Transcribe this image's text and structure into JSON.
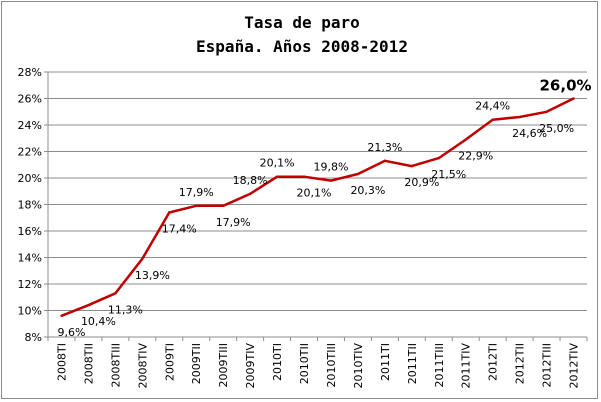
{
  "chart_data": {
    "type": "line",
    "title": "Tasa de paro",
    "subtitle": "España. Años 2008-2012",
    "categories": [
      "2008TI",
      "2008TII",
      "2008TIII",
      "2008TIV",
      "2009TI",
      "2009TII",
      "2009TIII",
      "2009TIV",
      "2010TI",
      "2010TII",
      "2010TIII",
      "2010TIV",
      "2011TI",
      "2011TII",
      "2011TIII",
      "2011TIV",
      "2012TI",
      "2012TII",
      "2012TIII",
      "2012TIV"
    ],
    "series": [
      {
        "values": [
          9.6,
          10.4,
          11.3,
          13.9,
          17.4,
          17.9,
          17.9,
          18.8,
          20.1,
          20.1,
          19.8,
          20.3,
          21.3,
          20.9,
          21.5,
          22.9,
          24.4,
          24.6,
          25.0,
          26.0
        ],
        "labels": [
          "9,6%",
          "10,4%",
          "11,3%",
          "13,9%",
          "17,4%",
          "17,9%",
          "17,9%",
          "18,8%",
          "20,1%",
          "20,1%",
          "19,8%",
          "20,3%",
          "21,3%",
          "20,9%",
          "21,5%",
          "22,9%",
          "24,4%",
          "24,6%",
          "25,0%",
          "26,0%"
        ],
        "color": "#c00000"
      }
    ],
    "y_ticks": [
      "8%",
      "10%",
      "12%",
      "14%",
      "16%",
      "18%",
      "20%",
      "22%",
      "24%",
      "26%",
      "28%"
    ],
    "ylim": [
      8,
      28
    ],
    "grid": true,
    "legend": "none"
  }
}
